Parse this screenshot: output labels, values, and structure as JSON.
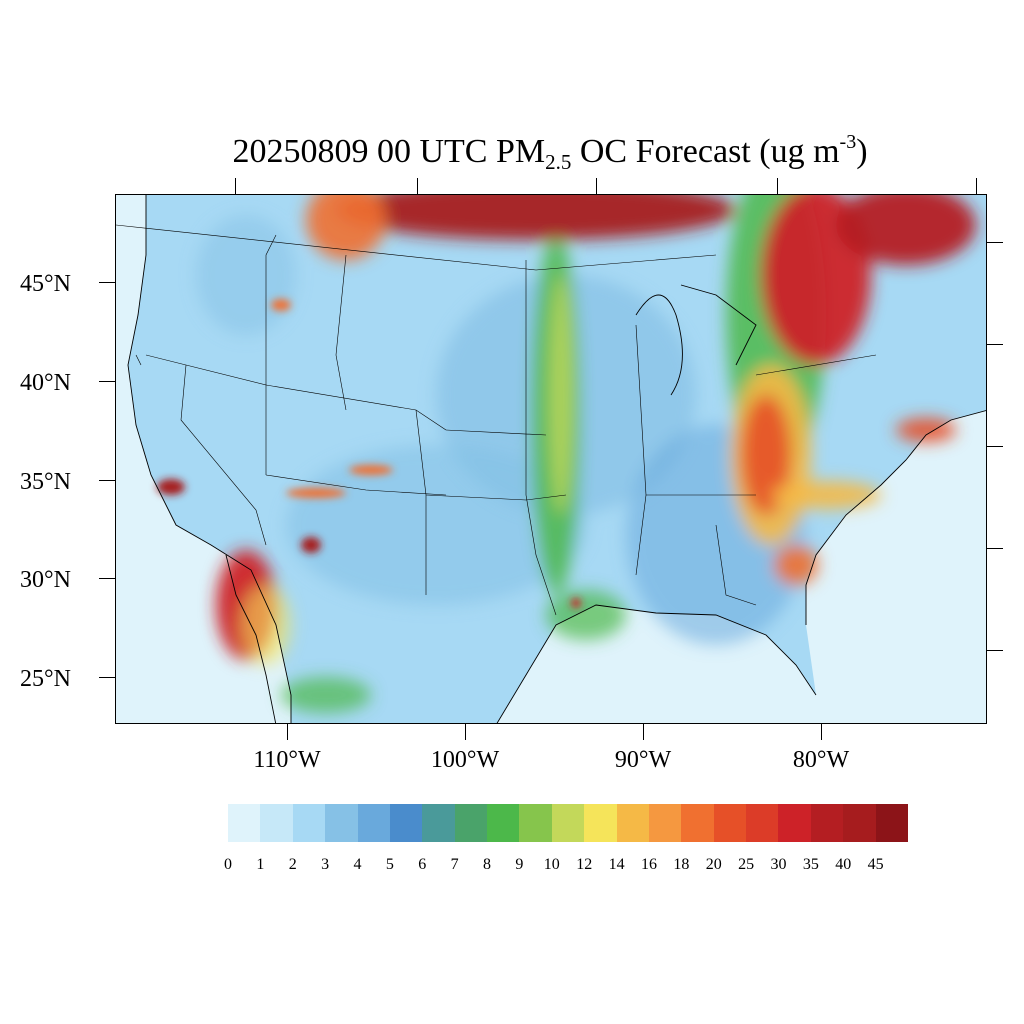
{
  "title": {
    "date_time": "20250809 00 UTC PM",
    "sub": "2.5",
    "rest": " OC Forecast (ug m",
    "sup": "-3",
    "close": ")"
  },
  "lat_labels": [
    "45°N",
    "40°N",
    "35°N",
    "30°N",
    "25°N"
  ],
  "lon_labels": [
    "110°W",
    "100°W",
    "90°W",
    "80°W"
  ],
  "colorbar": {
    "labels": [
      "0",
      "1",
      "2",
      "3",
      "4",
      "5",
      "6",
      "7",
      "8",
      "9",
      "10",
      "12",
      "14",
      "16",
      "18",
      "20",
      "25",
      "30",
      "35",
      "40",
      "45"
    ],
    "colors": [
      "#dff3fb",
      "#c6e8f8",
      "#a7d9f4",
      "#86c1e6",
      "#69a9dc",
      "#4a8ccc",
      "#4a9a9a",
      "#4aa36a",
      "#4cb84a",
      "#86c54c",
      "#c3d85a",
      "#f5e45a",
      "#f5b946",
      "#f59840",
      "#f07030",
      "#e65028",
      "#dc3c28",
      "#cd2228",
      "#b41e22",
      "#a61c1e",
      "#8c1418"
    ]
  },
  "map_colors": {
    "ocean": "#dff3fb",
    "land": "#a7d9f4",
    "border": "#000000"
  }
}
